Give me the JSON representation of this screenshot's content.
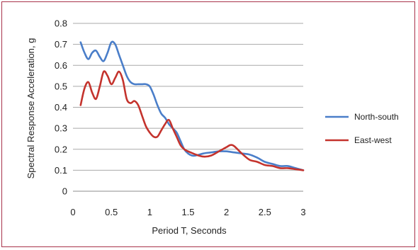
{
  "chart_data": {
    "type": "line",
    "xlabel": "Period T, Seconds",
    "ylabel": "Spectral Response Acceleration, g",
    "xlim": [
      0,
      3
    ],
    "ylim": [
      0,
      0.8
    ],
    "x_ticks": [
      0,
      0.5,
      1,
      1.5,
      2,
      2.5,
      3
    ],
    "x_tick_labels": [
      "0",
      "0.5",
      "1",
      "1.5",
      "2",
      "2.5",
      "3"
    ],
    "y_ticks": [
      0,
      0.1,
      0.2,
      0.3,
      0.4,
      0.5,
      0.6,
      0.7,
      0.8
    ],
    "y_tick_labels": [
      "0",
      "0.1",
      "0.2",
      "0.3",
      "0.4",
      "0.5",
      "0.6",
      "0.7",
      "0.8"
    ],
    "grid": "horizontal",
    "legend_position": "right",
    "series": [
      {
        "name": "North-south",
        "color": "#4a7ec9",
        "x": [
          0.1,
          0.15,
          0.2,
          0.25,
          0.3,
          0.35,
          0.4,
          0.45,
          0.5,
          0.55,
          0.6,
          0.65,
          0.7,
          0.75,
          0.8,
          0.85,
          0.9,
          0.95,
          1.0,
          1.05,
          1.1,
          1.15,
          1.2,
          1.25,
          1.3,
          1.35,
          1.4,
          1.45,
          1.5,
          1.55,
          1.6,
          1.7,
          1.8,
          1.9,
          2.0,
          2.1,
          2.2,
          2.3,
          2.4,
          2.5,
          2.6,
          2.7,
          2.8,
          2.9,
          3.0
        ],
        "values": [
          0.71,
          0.66,
          0.63,
          0.66,
          0.67,
          0.64,
          0.62,
          0.66,
          0.71,
          0.7,
          0.65,
          0.6,
          0.55,
          0.52,
          0.51,
          0.51,
          0.51,
          0.51,
          0.5,
          0.46,
          0.41,
          0.37,
          0.35,
          0.32,
          0.3,
          0.28,
          0.24,
          0.2,
          0.18,
          0.17,
          0.17,
          0.18,
          0.185,
          0.19,
          0.19,
          0.185,
          0.18,
          0.175,
          0.16,
          0.14,
          0.13,
          0.12,
          0.12,
          0.11,
          0.1
        ]
      },
      {
        "name": "East-west",
        "color": "#c4332d",
        "x": [
          0.1,
          0.15,
          0.2,
          0.25,
          0.3,
          0.35,
          0.4,
          0.45,
          0.5,
          0.55,
          0.6,
          0.65,
          0.7,
          0.75,
          0.8,
          0.85,
          0.9,
          0.95,
          1.0,
          1.05,
          1.1,
          1.15,
          1.2,
          1.25,
          1.3,
          1.35,
          1.4,
          1.45,
          1.5,
          1.6,
          1.7,
          1.8,
          1.9,
          2.0,
          2.05,
          2.1,
          2.2,
          2.3,
          2.4,
          2.5,
          2.6,
          2.7,
          2.8,
          2.9,
          3.0
        ],
        "values": [
          0.41,
          0.49,
          0.52,
          0.47,
          0.44,
          0.5,
          0.57,
          0.55,
          0.51,
          0.54,
          0.57,
          0.53,
          0.44,
          0.42,
          0.43,
          0.41,
          0.36,
          0.31,
          0.28,
          0.26,
          0.26,
          0.29,
          0.32,
          0.34,
          0.3,
          0.26,
          0.22,
          0.2,
          0.19,
          0.175,
          0.165,
          0.17,
          0.19,
          0.21,
          0.22,
          0.215,
          0.18,
          0.15,
          0.14,
          0.125,
          0.12,
          0.11,
          0.11,
          0.105,
          0.1
        ]
      }
    ]
  }
}
